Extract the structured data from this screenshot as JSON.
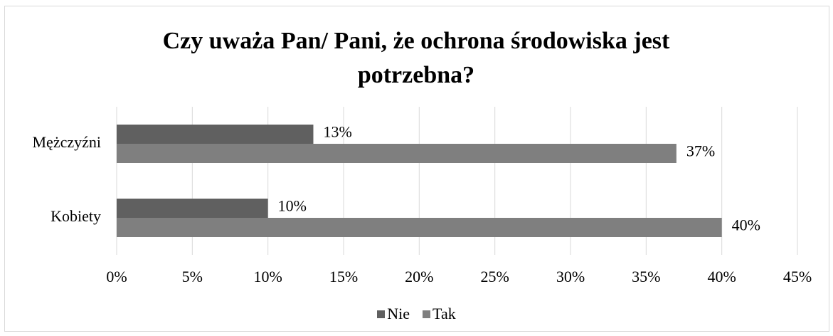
{
  "chart_data": {
    "type": "bar",
    "orientation": "horizontal",
    "title": "Czy uważa Pan/ Pani, że ochrona środowiska jest potrzebna?",
    "categories": [
      "Mężczyźni",
      "Kobiety"
    ],
    "series": [
      {
        "name": "Nie",
        "color": "#606060",
        "values": [
          13,
          10
        ],
        "value_labels": [
          "13%",
          "10%"
        ]
      },
      {
        "name": "Tak",
        "color": "#7f7f7f",
        "values": [
          37,
          40
        ],
        "value_labels": [
          "37%",
          "40%"
        ]
      }
    ],
    "xlim": [
      0,
      45
    ],
    "xticks": [
      {
        "value": 0,
        "label": "0%"
      },
      {
        "value": 5,
        "label": "5%"
      },
      {
        "value": 10,
        "label": "10%"
      },
      {
        "value": 15,
        "label": "15%"
      },
      {
        "value": 20,
        "label": "20%"
      },
      {
        "value": 25,
        "label": "25%"
      },
      {
        "value": 30,
        "label": "30%"
      },
      {
        "value": 35,
        "label": "35%"
      },
      {
        "value": 40,
        "label": "40%"
      },
      {
        "value": 45,
        "label": "45%"
      }
    ],
    "grid": true,
    "legend": "bottom"
  }
}
